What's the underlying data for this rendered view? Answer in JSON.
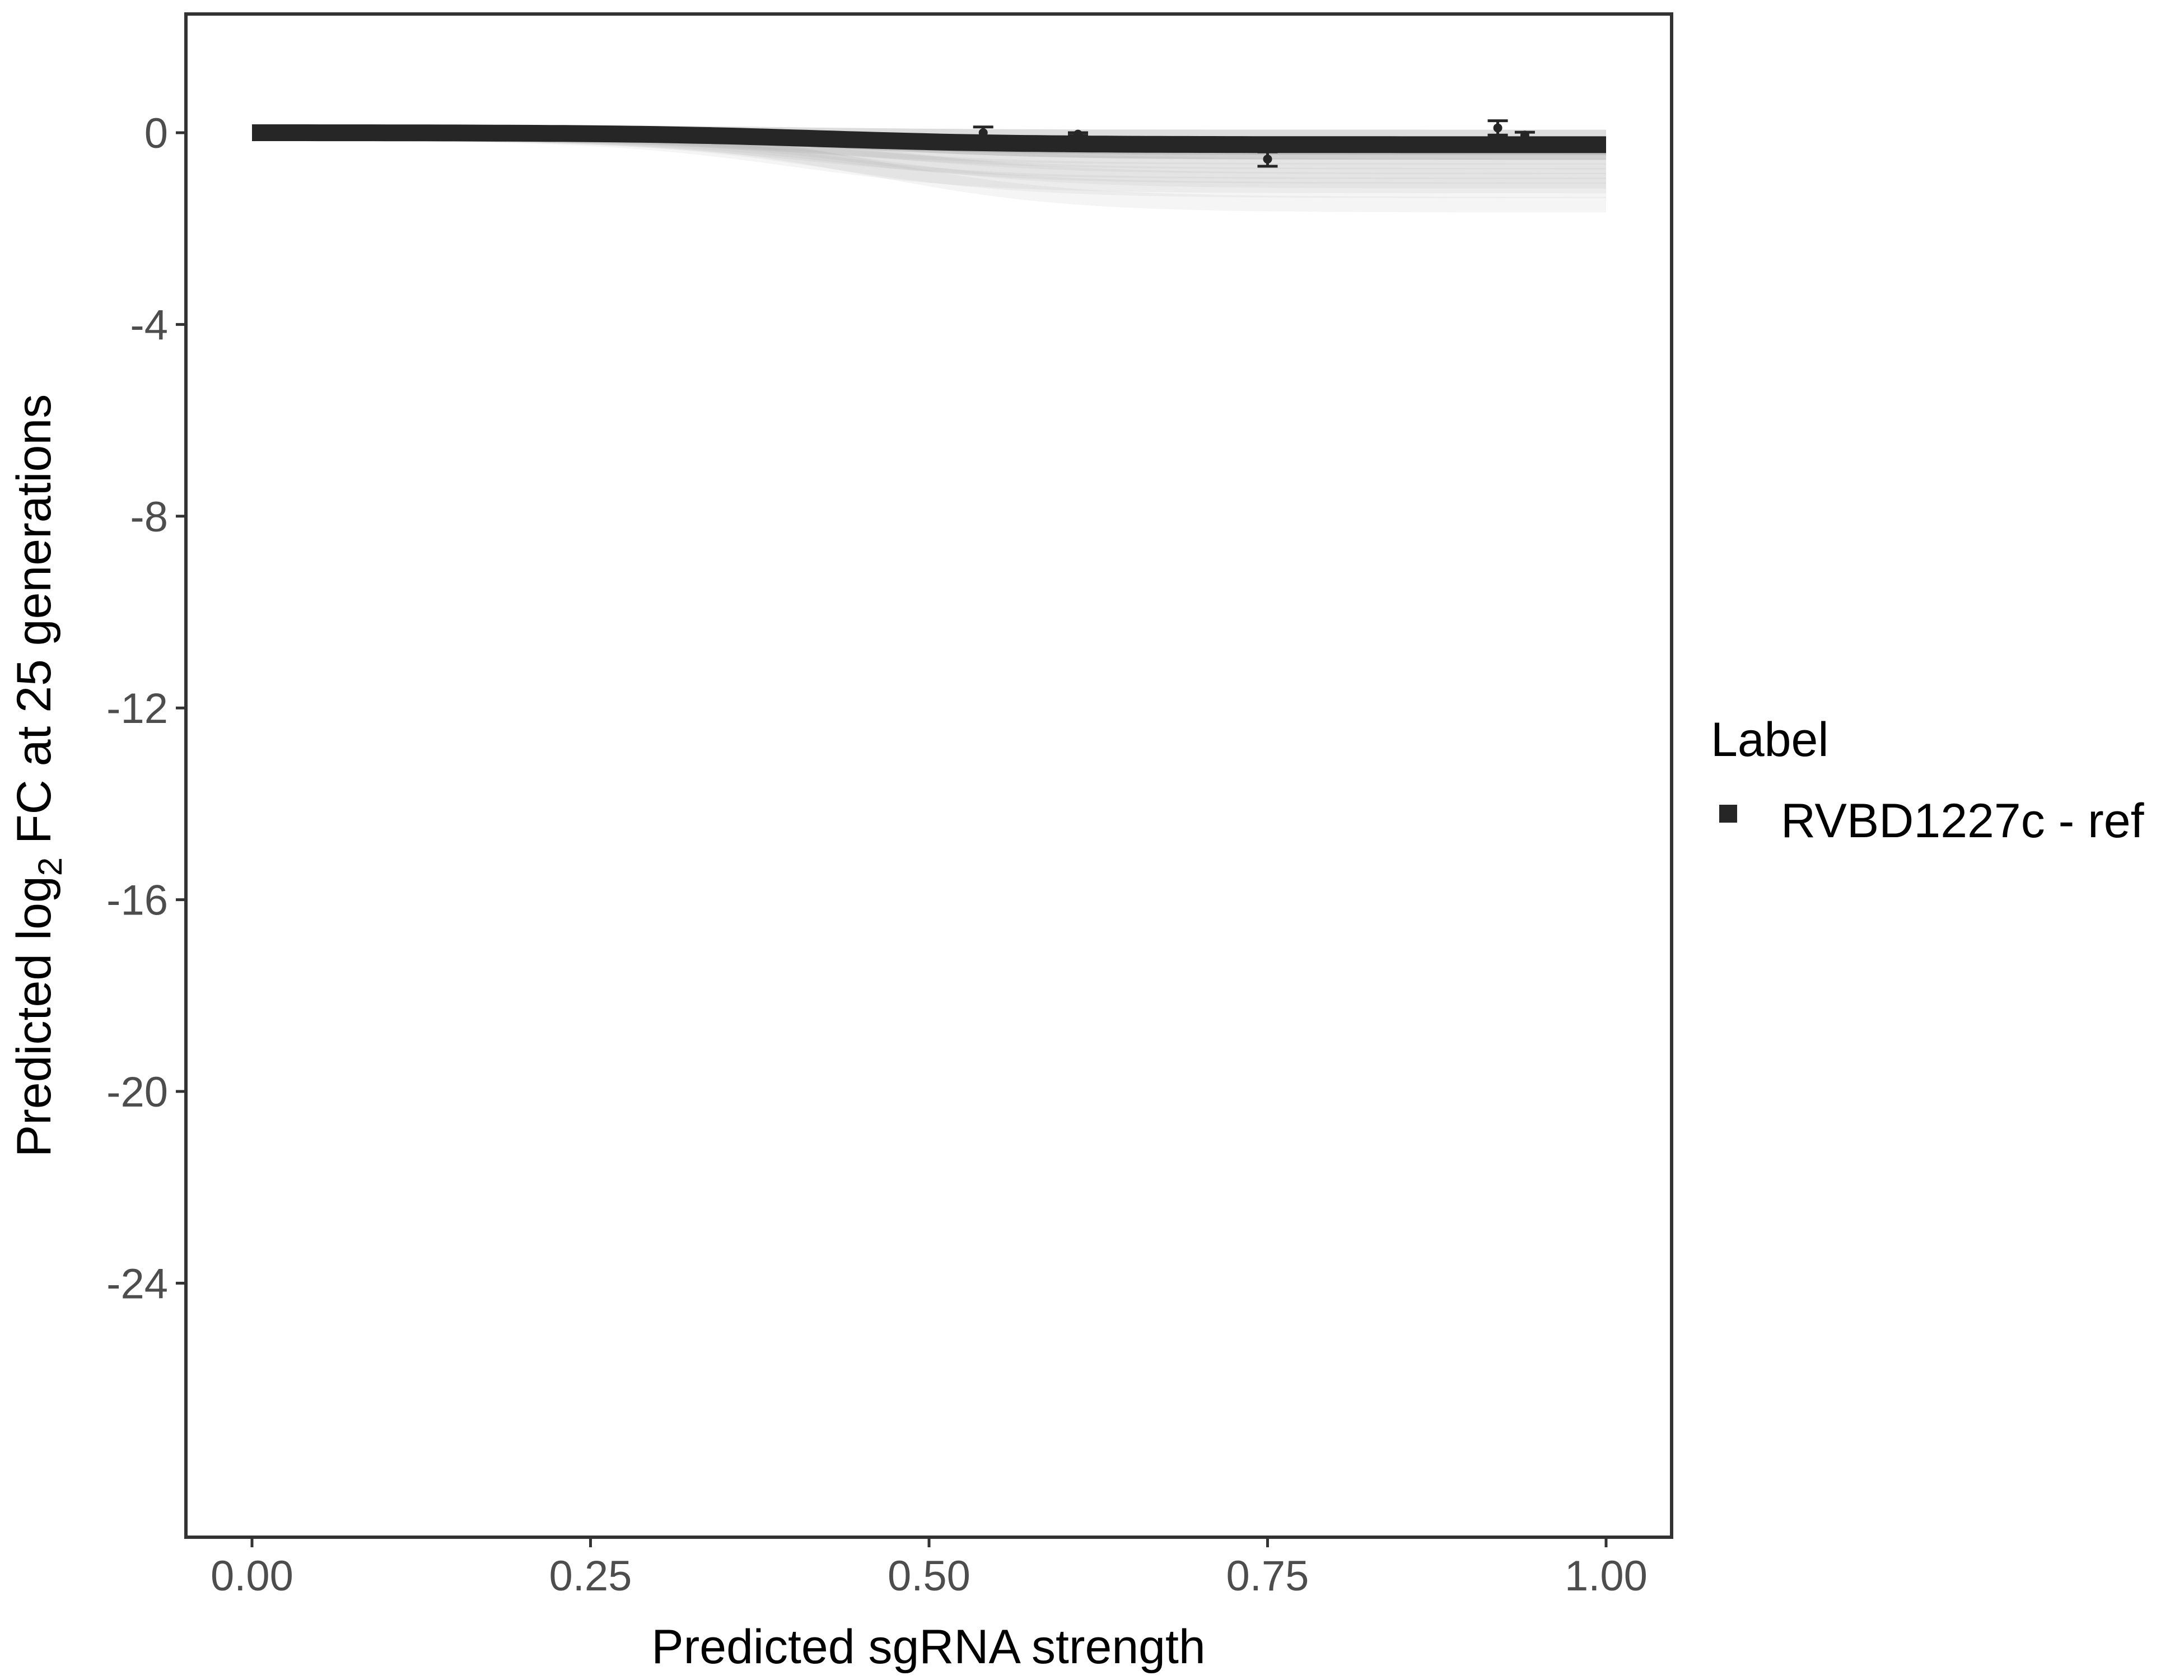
{
  "chart_data": {
    "type": "line",
    "xlabel": "Predicted sgRNA strength",
    "ylabel_parts": {
      "pre": "Predicted  log",
      "sub": "2",
      "post": " FC at 25 generations"
    },
    "xlim": [
      -0.1,
      1.05
    ],
    "ylim": [
      -29.3,
      2.5
    ],
    "x_ticks": [
      0,
      0.25,
      0.5,
      0.75,
      1
    ],
    "x_tick_labels": [
      "0.00",
      "0.25",
      "0.50",
      "0.75",
      "1.00"
    ],
    "y_ticks": [
      0,
      -4,
      -8,
      -12,
      -16,
      -20,
      -24
    ],
    "y_tick_labels": [
      "0",
      "-4",
      "-8",
      "-12",
      "-16",
      "-20",
      "-24"
    ],
    "grid": false,
    "legend": {
      "title": "Label",
      "placement": "right",
      "entries": [
        {
          "label": "RVBD1227c - ref",
          "color": "#262626"
        }
      ]
    },
    "main_curve": {
      "color": "#262626",
      "start_value": 0.0,
      "end_value": -0.25,
      "midpoint": 0.42
    },
    "background_curves": {
      "color": "#9e9e9e",
      "end_values": [
        -0.1,
        -0.3,
        -0.4,
        -0.5,
        -0.6,
        -0.7,
        -0.8,
        -0.9,
        -1.0,
        -1.1,
        -1.2,
        -1.5
      ]
    },
    "points": [
      {
        "x": 0.54,
        "y": 0.0,
        "err": 0.12
      },
      {
        "x": 0.61,
        "y": -0.03,
        "err": 0.03
      },
      {
        "x": 0.75,
        "y": -0.55,
        "err": 0.15
      },
      {
        "x": 0.92,
        "y": 0.1,
        "err": 0.15
      },
      {
        "x": 0.94,
        "y": -0.05,
        "err": 0.06
      }
    ]
  }
}
